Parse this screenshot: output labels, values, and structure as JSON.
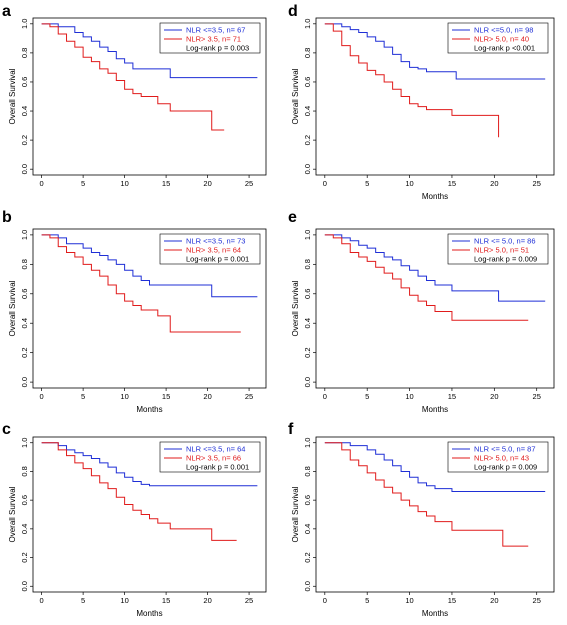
{
  "colors": {
    "series_low": "#1f2fd6",
    "series_high": "#e01b1b",
    "axis": "#000000",
    "legend_note": "#000000"
  },
  "chart_data": [
    {
      "panel": "a",
      "type": "line",
      "step": true,
      "xlabel": "",
      "ylabel": "Overall Survival",
      "xlim": [
        0,
        26
      ],
      "ylim": [
        0,
        1
      ],
      "xticks": [
        "0",
        "5",
        "10",
        "15",
        "20",
        "25"
      ],
      "yticks": [
        "0.0",
        "0.2",
        "0.4",
        "0.6",
        "0.8",
        "1.0"
      ],
      "legend_position": "top-right",
      "legend": [
        "NLR <=3.5, n= 67",
        "NLR> 3.5, n= 71"
      ],
      "note": "Log-rank p  = 0.003",
      "series": [
        {
          "name": "NLR <=3.5, n= 67",
          "color_key": "series_low",
          "x": [
            0,
            2,
            4,
            5,
            6,
            7,
            8,
            9,
            10,
            11,
            12,
            15.5,
            26
          ],
          "y": [
            1,
            0.98,
            0.94,
            0.91,
            0.88,
            0.84,
            0.81,
            0.76,
            0.73,
            0.69,
            0.69,
            0.63,
            0.63
          ]
        },
        {
          "name": "NLR> 3.5, n= 71",
          "color_key": "series_high",
          "x": [
            0,
            1,
            2,
            3,
            4,
            5,
            6,
            7,
            8,
            9,
            10,
            11,
            12,
            14,
            15.5,
            20.5,
            22
          ],
          "y": [
            1,
            0.98,
            0.93,
            0.88,
            0.84,
            0.77,
            0.74,
            0.69,
            0.66,
            0.61,
            0.55,
            0.52,
            0.5,
            0.45,
            0.4,
            0.27,
            0.27
          ]
        }
      ]
    },
    {
      "panel": "d",
      "type": "line",
      "step": true,
      "xlabel": "Months",
      "ylabel": "Overall Survival",
      "xlim": [
        0,
        26
      ],
      "ylim": [
        0,
        1
      ],
      "xticks": [
        "0",
        "5",
        "10",
        "15",
        "20",
        "25"
      ],
      "yticks": [
        "0.0",
        "0.2",
        "0.4",
        "0.6",
        "0.8",
        "1.0"
      ],
      "legend_position": "top-right",
      "legend": [
        "NLR <=5.0, n= 98",
        "NLR> 5.0, n= 40"
      ],
      "note": "Log-rank p  <0.001",
      "series": [
        {
          "name": "NLR <=5.0, n= 98",
          "color_key": "series_low",
          "x": [
            0,
            2,
            3,
            4,
            5,
            6,
            7,
            8,
            9,
            10,
            11,
            12,
            15.5,
            26
          ],
          "y": [
            1,
            0.98,
            0.96,
            0.94,
            0.91,
            0.88,
            0.84,
            0.79,
            0.74,
            0.7,
            0.69,
            0.67,
            0.62,
            0.62
          ]
        },
        {
          "name": "NLR> 5.0, n= 40",
          "color_key": "series_high",
          "x": [
            0,
            1,
            2,
            3,
            4,
            5,
            6,
            7,
            8,
            9,
            10,
            11,
            12,
            15,
            20.2,
            20.5
          ],
          "y": [
            1,
            0.95,
            0.85,
            0.78,
            0.73,
            0.68,
            0.65,
            0.6,
            0.55,
            0.5,
            0.45,
            0.43,
            0.41,
            0.37,
            0.37,
            0.22
          ]
        }
      ]
    },
    {
      "panel": "b",
      "type": "line",
      "step": true,
      "xlabel": "Months",
      "ylabel": "Overall Survival",
      "xlim": [
        0,
        26
      ],
      "ylim": [
        0,
        1
      ],
      "xticks": [
        "0",
        "5",
        "10",
        "15",
        "20",
        "25"
      ],
      "yticks": [
        "0.0",
        "0.2",
        "0.4",
        "0.6",
        "0.8",
        "1.0"
      ],
      "legend_position": "top-right",
      "legend": [
        "NLR <=3.5, n= 73",
        "NLR> 3.5, n= 64"
      ],
      "note": "Log-rank p  = 0.001",
      "series": [
        {
          "name": "NLR <=3.5, n= 73",
          "color_key": "series_low",
          "x": [
            0,
            2,
            3,
            5,
            6,
            7,
            8,
            9,
            10,
            11,
            12,
            13,
            15,
            20.5,
            26
          ],
          "y": [
            1,
            0.98,
            0.94,
            0.91,
            0.88,
            0.86,
            0.83,
            0.8,
            0.76,
            0.72,
            0.69,
            0.66,
            0.66,
            0.58,
            0.58
          ]
        },
        {
          "name": "NLR> 3.5, n= 64",
          "color_key": "series_high",
          "x": [
            0,
            1,
            2,
            3,
            4,
            5,
            6,
            7,
            8,
            9,
            10,
            11,
            12,
            14,
            15.5,
            24
          ],
          "y": [
            1,
            0.98,
            0.92,
            0.88,
            0.85,
            0.8,
            0.76,
            0.72,
            0.66,
            0.6,
            0.55,
            0.52,
            0.49,
            0.45,
            0.34,
            0.34
          ]
        }
      ]
    },
    {
      "panel": "e",
      "type": "line",
      "step": true,
      "xlabel": "Months",
      "ylabel": "Overall Survival",
      "xlim": [
        0,
        26
      ],
      "ylim": [
        0,
        1
      ],
      "xticks": [
        "0",
        "5",
        "10",
        "15",
        "20",
        "25"
      ],
      "yticks": [
        "0.0",
        "0.2",
        "0.4",
        "0.6",
        "0.8",
        "1.0"
      ],
      "legend_position": "top-right",
      "legend": [
        "NLR <= 5.0, n= 86",
        "NLR> 5.0, n= 51"
      ],
      "note": "Log-rank p  = 0.009",
      "series": [
        {
          "name": "NLR <= 5.0, n= 86",
          "color_key": "series_low",
          "x": [
            0,
            2,
            3,
            4,
            5,
            6,
            7,
            8,
            9,
            10,
            11,
            12,
            13,
            15,
            20.5,
            26
          ],
          "y": [
            1,
            0.98,
            0.96,
            0.93,
            0.91,
            0.88,
            0.85,
            0.83,
            0.79,
            0.76,
            0.72,
            0.69,
            0.66,
            0.62,
            0.55,
            0.55
          ]
        },
        {
          "name": "NLR> 5.0, n= 51",
          "color_key": "series_high",
          "x": [
            0,
            1,
            2,
            3,
            4,
            5,
            6,
            7,
            8,
            9,
            10,
            11,
            12,
            13,
            15,
            24
          ],
          "y": [
            1,
            0.98,
            0.94,
            0.88,
            0.85,
            0.82,
            0.78,
            0.74,
            0.7,
            0.64,
            0.59,
            0.55,
            0.52,
            0.48,
            0.42,
            0.42
          ]
        }
      ]
    },
    {
      "panel": "c",
      "type": "line",
      "step": true,
      "xlabel": "Months",
      "ylabel": "Overall Survival",
      "xlim": [
        0,
        26
      ],
      "ylim": [
        0,
        1
      ],
      "xticks": [
        "0",
        "5",
        "10",
        "15",
        "20",
        "25"
      ],
      "yticks": [
        "0.0",
        "0.2",
        "0.4",
        "0.6",
        "0.8",
        "1.0"
      ],
      "legend_position": "top-right",
      "legend": [
        "NLR <=3.5, n= 64",
        "NLR> 3.5, n= 66"
      ],
      "note": "Log-rank p  = 0.001",
      "series": [
        {
          "name": "NLR <=3.5, n= 64",
          "color_key": "series_low",
          "x": [
            0,
            2,
            3,
            4,
            5,
            6,
            7,
            8,
            9,
            10,
            11,
            12,
            13,
            26
          ],
          "y": [
            1,
            0.98,
            0.95,
            0.93,
            0.91,
            0.89,
            0.86,
            0.83,
            0.79,
            0.76,
            0.73,
            0.71,
            0.7,
            0.7
          ]
        },
        {
          "name": "NLR> 3.5, n= 66",
          "color_key": "series_high",
          "x": [
            0,
            2,
            3,
            4,
            5,
            6,
            7,
            8,
            9,
            10,
            11,
            12,
            13,
            14,
            15.5,
            20.5,
            23.5
          ],
          "y": [
            1,
            0.95,
            0.91,
            0.86,
            0.82,
            0.77,
            0.72,
            0.68,
            0.62,
            0.57,
            0.53,
            0.5,
            0.47,
            0.44,
            0.4,
            0.32,
            0.32
          ]
        }
      ]
    },
    {
      "panel": "f",
      "type": "line",
      "step": true,
      "xlabel": "Months",
      "ylabel": "Overall Survival",
      "xlim": [
        0,
        26
      ],
      "ylim": [
        0,
        1
      ],
      "xticks": [
        "0",
        "5",
        "10",
        "15",
        "20",
        "25"
      ],
      "yticks": [
        "0.0",
        "0.2",
        "0.4",
        "0.6",
        "0.8",
        "1.0"
      ],
      "legend_position": "top-right",
      "legend": [
        "NLR <= 5.0, n= 87",
        "NLR> 5.0, n= 43"
      ],
      "note": "Log-rank p  = 0.009",
      "series": [
        {
          "name": "NLR <= 5.0, n= 87",
          "color_key": "series_low",
          "x": [
            0,
            3,
            5,
            6,
            7,
            8,
            9,
            10,
            11,
            12,
            13,
            15,
            26
          ],
          "y": [
            1,
            0.98,
            0.95,
            0.92,
            0.88,
            0.84,
            0.8,
            0.76,
            0.72,
            0.7,
            0.68,
            0.66,
            0.66
          ]
        },
        {
          "name": "NLR> 5.0, n= 43",
          "color_key": "series_high",
          "x": [
            0,
            2,
            3,
            4,
            5,
            6,
            7,
            8,
            9,
            10,
            11,
            12,
            13,
            15,
            21,
            24
          ],
          "y": [
            1,
            0.95,
            0.88,
            0.84,
            0.79,
            0.74,
            0.69,
            0.65,
            0.6,
            0.56,
            0.52,
            0.49,
            0.45,
            0.39,
            0.28,
            0.28
          ]
        }
      ]
    }
  ]
}
